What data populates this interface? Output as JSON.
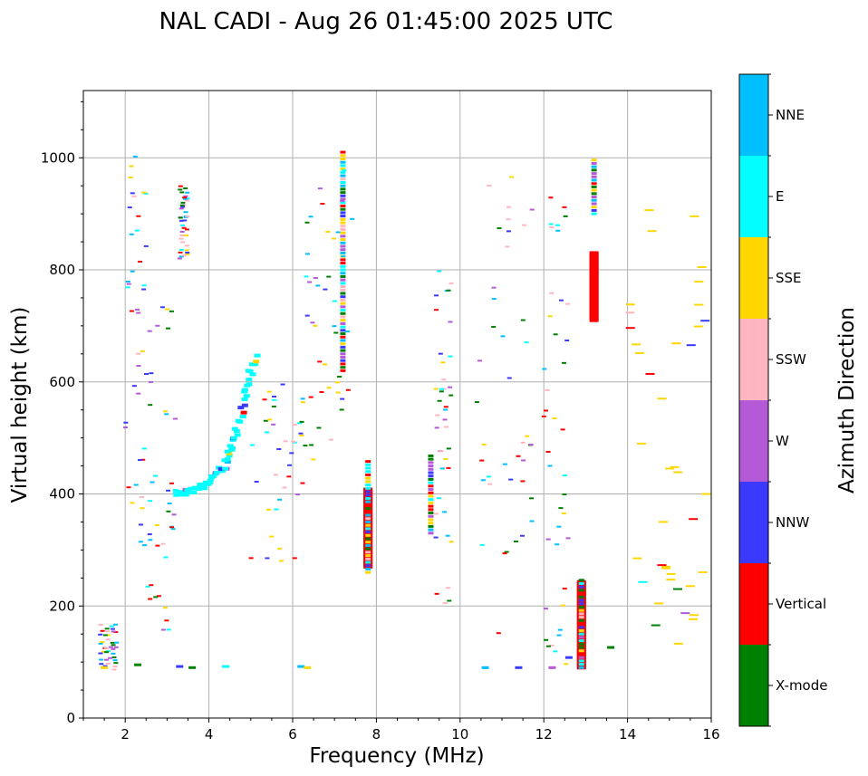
{
  "chart_data": {
    "type": "scatter",
    "title": "NAL CADI - Aug 26 01:45:00 2025 UTC",
    "xlabel": "Frequency (MHz)",
    "ylabel": "Virtual height (km)",
    "xlim": [
      1,
      16
    ],
    "ylim": [
      0,
      1120
    ],
    "xticks": [
      2,
      4,
      6,
      8,
      10,
      12,
      14,
      16
    ],
    "yticks": [
      0,
      200,
      400,
      600,
      800,
      1000
    ],
    "grid": true,
    "colorbar": {
      "label": "Azimuth Direction",
      "categories": [
        {
          "name": "X-mode",
          "color": "#008000"
        },
        {
          "name": "Vertical",
          "color": "#ff0000"
        },
        {
          "name": "NNW",
          "color": "#3a3aff"
        },
        {
          "name": "W",
          "color": "#b45ad6"
        },
        {
          "name": "SSW",
          "color": "#ffb6c1"
        },
        {
          "name": "SSE",
          "color": "#ffd700"
        },
        {
          "name": "E",
          "color": "#00ffff"
        },
        {
          "name": "NNE",
          "color": "#00bfff"
        }
      ]
    },
    "traces": [
      {
        "name": "Vertical column near 13.2 MHz",
        "direction": "Vertical",
        "x": 13.2,
        "y_from": 710,
        "y_to": 830
      },
      {
        "name": "Vertical column near 12.9 MHz",
        "direction": "Vertical",
        "x": 12.9,
        "y_from": 90,
        "y_to": 245
      },
      {
        "name": "Vertical column near 7.8 MHz",
        "direction": "Vertical",
        "x": 7.8,
        "y_from": 270,
        "y_to": 410
      },
      {
        "name": "E-layer trace",
        "direction": "E",
        "x": [
          3.2,
          3.6,
          4.0,
          4.4,
          4.6,
          4.9,
          5.1
        ],
        "y": [
          400,
          405,
          420,
          450,
          500,
          580,
          650
        ]
      }
    ]
  }
}
